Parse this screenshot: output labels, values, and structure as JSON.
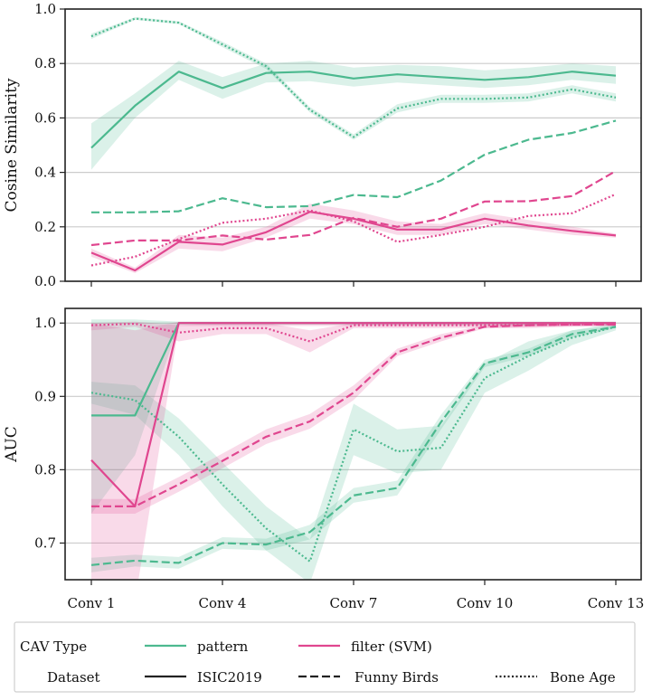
{
  "chart_data": {
    "type": "line",
    "x_ticks": [
      "Conv 1",
      "Conv 4",
      "Conv 7",
      "Conv 10",
      "Conv 13"
    ],
    "x_tick_layers": [
      1,
      4,
      7,
      10,
      13
    ],
    "x_range": [
      1,
      13
    ],
    "legend": {
      "cav_type_title": "CAV Type",
      "dataset_title": "Dataset",
      "cav_types": [
        {
          "name": "pattern",
          "color": "#4cb98f"
        },
        {
          "name": "filter (SVM)",
          "color": "#e0468f"
        }
      ],
      "datasets": [
        {
          "name": "ISIC2019",
          "dash": "solid"
        },
        {
          "name": "Funny Birds",
          "dash": "dashed"
        },
        {
          "name": "Bone Age",
          "dash": "dotted"
        }
      ]
    },
    "panels": [
      {
        "id": "cosine",
        "ylabel": "Cosine Similarity",
        "ylim": [
          0.0,
          1.0
        ],
        "yticks": [
          0.0,
          0.2,
          0.4,
          0.6,
          0.8,
          1.0
        ],
        "ytick_labels": [
          "0.0",
          "0.2",
          "0.4",
          "0.6",
          "0.8",
          "1.0"
        ],
        "series": [
          {
            "cav": "pattern",
            "dataset": "ISIC2019",
            "x": [
              1,
              2,
              3,
              4,
              5,
              6,
              7,
              8,
              9,
              10,
              11,
              12,
              13
            ],
            "y": [
              0.49,
              0.645,
              0.77,
              0.71,
              0.765,
              0.77,
              0.745,
              0.76,
              0.75,
              0.74,
              0.75,
              0.77,
              0.755
            ],
            "lo": [
              0.41,
              0.6,
              0.74,
              0.67,
              0.73,
              0.735,
              0.715,
              0.73,
              0.72,
              0.71,
              0.72,
              0.74,
              0.725
            ],
            "hi": [
              0.58,
              0.69,
              0.81,
              0.75,
              0.8,
              0.81,
              0.785,
              0.795,
              0.79,
              0.775,
              0.785,
              0.8,
              0.79
            ]
          },
          {
            "cav": "pattern",
            "dataset": "Funny Birds",
            "x": [
              1,
              2,
              3,
              4,
              5,
              6,
              7,
              8,
              9,
              10,
              11,
              12,
              13
            ],
            "y": [
              0.253,
              0.253,
              0.257,
              0.305,
              0.272,
              0.276,
              0.317,
              0.309,
              0.37,
              0.465,
              0.52,
              0.545,
              0.59
            ]
          },
          {
            "cav": "pattern",
            "dataset": "Bone Age",
            "x": [
              1,
              2,
              3,
              4,
              5,
              6,
              7,
              8,
              9,
              10,
              11,
              12,
              13
            ],
            "y": [
              0.9,
              0.965,
              0.95,
              0.87,
              0.79,
              0.63,
              0.53,
              0.635,
              0.67,
              0.67,
              0.675,
              0.705,
              0.675
            ],
            "lo": [
              0.89,
              0.96,
              0.945,
              0.86,
              0.78,
              0.62,
              0.52,
              0.62,
              0.655,
              0.655,
              0.66,
              0.69,
              0.66
            ],
            "hi": [
              0.91,
              0.97,
              0.955,
              0.88,
              0.8,
              0.64,
              0.54,
              0.65,
              0.685,
              0.685,
              0.69,
              0.72,
              0.69
            ]
          },
          {
            "cav": "filter (SVM)",
            "dataset": "ISIC2019",
            "x": [
              1,
              2,
              3,
              4,
              5,
              6,
              7,
              8,
              9,
              10,
              11,
              12,
              13
            ],
            "y": [
              0.105,
              0.04,
              0.145,
              0.135,
              0.18,
              0.255,
              0.23,
              0.19,
              0.19,
              0.23,
              0.205,
              0.185,
              0.168
            ],
            "lo": [
              0.09,
              0.03,
              0.12,
              0.11,
              0.16,
              0.23,
              0.21,
              0.17,
              0.17,
              0.21,
              0.19,
              0.17,
              0.16
            ],
            "hi": [
              0.12,
              0.05,
              0.17,
              0.16,
              0.2,
              0.285,
              0.26,
              0.22,
              0.21,
              0.25,
              0.225,
              0.2,
              0.175
            ]
          },
          {
            "cav": "filter (SVM)",
            "dataset": "Funny Birds",
            "x": [
              1,
              2,
              3,
              4,
              5,
              6,
              7,
              8,
              9,
              10,
              11,
              12,
              13
            ],
            "y": [
              0.133,
              0.15,
              0.15,
              0.168,
              0.153,
              0.17,
              0.233,
              0.2,
              0.23,
              0.293,
              0.294,
              0.313,
              0.405
            ]
          },
          {
            "cav": "filter (SVM)",
            "dataset": "Bone Age",
            "x": [
              1,
              2,
              3,
              4,
              5,
              6,
              7,
              8,
              9,
              10,
              11,
              12,
              13
            ],
            "y": [
              0.058,
              0.09,
              0.155,
              0.215,
              0.23,
              0.26,
              0.22,
              0.145,
              0.17,
              0.2,
              0.24,
              0.25,
              0.32
            ]
          }
        ]
      },
      {
        "id": "auc",
        "ylabel": "AUC",
        "ylim": [
          0.65,
          1.02
        ],
        "yticks": [
          0.7,
          0.8,
          0.9,
          1.0
        ],
        "ytick_labels": [
          "0.7",
          "0.8",
          "0.9",
          "1.0"
        ],
        "series": [
          {
            "cav": "pattern",
            "dataset": "ISIC2019",
            "x": [
              1,
              2,
              3,
              4,
              5,
              6,
              7,
              8,
              9,
              10,
              11,
              12,
              13
            ],
            "y": [
              0.874,
              0.874,
              1.0,
              1.0,
              1.0,
              1.0,
              1.0,
              1.0,
              1.0,
              1.0,
              1.0,
              1.0,
              1.0
            ],
            "lo": [
              0.74,
              0.82,
              0.998,
              0.998,
              0.998,
              0.998,
              0.998,
              0.998,
              0.998,
              0.998,
              0.998,
              0.998,
              0.998
            ],
            "hi": [
              1.005,
              1.005,
              1.002,
              1.002,
              1.002,
              1.002,
              1.002,
              1.002,
              1.002,
              1.002,
              1.002,
              1.002,
              1.002
            ]
          },
          {
            "cav": "pattern",
            "dataset": "Funny Birds",
            "x": [
              1,
              2,
              3,
              4,
              5,
              6,
              7,
              8,
              9,
              10,
              11,
              12,
              13
            ],
            "y": [
              0.67,
              0.676,
              0.673,
              0.7,
              0.698,
              0.715,
              0.765,
              0.775,
              0.865,
              0.945,
              0.96,
              0.985,
              0.995
            ],
            "lo": [
              0.66,
              0.668,
              0.665,
              0.692,
              0.69,
              0.705,
              0.755,
              0.765,
              0.855,
              0.94,
              0.955,
              0.98,
              0.993
            ],
            "hi": [
              0.68,
              0.684,
              0.681,
              0.708,
              0.706,
              0.725,
              0.775,
              0.785,
              0.875,
              0.95,
              0.965,
              0.99,
              0.997
            ]
          },
          {
            "cav": "pattern",
            "dataset": "Bone Age",
            "x": [
              1,
              2,
              3,
              4,
              5,
              6,
              7,
              8,
              9,
              10,
              11,
              12,
              13
            ],
            "y": [
              0.905,
              0.895,
              0.845,
              0.78,
              0.72,
              0.675,
              0.855,
              0.825,
              0.83,
              0.925,
              0.955,
              0.98,
              0.995
            ],
            "lo": [
              0.89,
              0.875,
              0.82,
              0.75,
              0.69,
              0.645,
              0.82,
              0.795,
              0.8,
              0.905,
              0.935,
              0.97,
              0.99
            ],
            "hi": [
              0.92,
              0.915,
              0.87,
              0.81,
              0.75,
              0.705,
              0.89,
              0.855,
              0.86,
              0.945,
              0.975,
              0.99,
              1.0
            ]
          },
          {
            "cav": "filter (SVM)",
            "dataset": "ISIC2019",
            "x": [
              1,
              2,
              3,
              4,
              5,
              6,
              7,
              8,
              9,
              10,
              11,
              12,
              13
            ],
            "y": [
              0.813,
              0.75,
              1.0,
              1.0,
              1.0,
              1.0,
              1.0,
              1.0,
              1.0,
              1.0,
              1.0,
              1.0,
              1.0
            ],
            "lo": [
              0.62,
              0.62,
              0.996,
              0.996,
              0.996,
              0.996,
              0.996,
              0.996,
              0.996,
              0.996,
              0.996,
              0.996,
              0.996
            ],
            "hi": [
              1.0,
              0.99,
              1.002,
              1.002,
              1.002,
              1.002,
              1.002,
              1.002,
              1.002,
              1.002,
              1.002,
              1.002,
              1.002
            ]
          },
          {
            "cav": "filter (SVM)",
            "dataset": "Funny Birds",
            "x": [
              1,
              2,
              3,
              4,
              5,
              6,
              7,
              8,
              9,
              10,
              11,
              12,
              13
            ],
            "y": [
              0.75,
              0.75,
              0.78,
              0.812,
              0.845,
              0.866,
              0.905,
              0.96,
              0.98,
              0.995,
              0.997,
              0.998,
              0.998
            ],
            "lo": [
              0.74,
              0.74,
              0.77,
              0.802,
              0.835,
              0.856,
              0.895,
              0.955,
              0.975,
              0.993,
              0.995,
              0.996,
              0.996
            ],
            "hi": [
              0.76,
              0.76,
              0.79,
              0.822,
              0.855,
              0.876,
              0.915,
              0.965,
              0.985,
              0.997,
              0.999,
              1.0,
              1.0
            ]
          },
          {
            "cav": "filter (SVM)",
            "dataset": "Bone Age",
            "x": [
              1,
              2,
              3,
              4,
              5,
              6,
              7,
              8,
              9,
              10,
              11,
              12,
              13
            ],
            "y": [
              0.997,
              0.999,
              0.987,
              0.993,
              0.993,
              0.975,
              0.997,
              0.997,
              0.997,
              0.997,
              0.997,
              0.998,
              0.999
            ],
            "lo": [
              0.99,
              0.995,
              0.975,
              0.985,
              0.985,
              0.96,
              0.993,
              0.993,
              0.993,
              0.993,
              0.993,
              0.995,
              0.997
            ],
            "hi": [
              1.0,
              1.002,
              0.997,
              1.0,
              1.0,
              0.99,
              1.0,
              1.0,
              1.0,
              1.0,
              1.0,
              1.0,
              1.0
            ]
          }
        ]
      }
    ]
  }
}
